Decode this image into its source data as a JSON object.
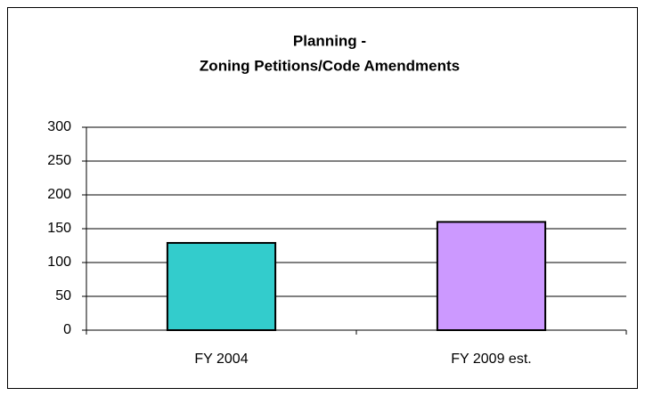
{
  "chart_data": {
    "type": "bar",
    "title": [
      "Planning -",
      "Zoning Petitions/Code Amendments"
    ],
    "categories": [
      "FY 2004",
      "FY 2009 est."
    ],
    "values": [
      129,
      160
    ],
    "colors": [
      "#33cccc",
      "#cc99ff"
    ],
    "ylim": [
      0,
      300
    ],
    "yticks": [
      0,
      50,
      100,
      150,
      200,
      250,
      300
    ],
    "grid": true
  }
}
